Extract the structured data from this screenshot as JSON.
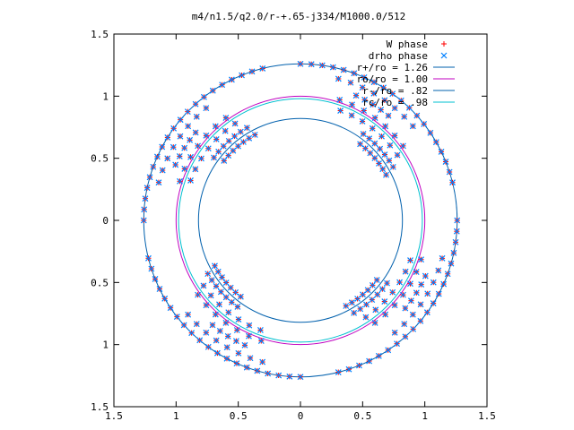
{
  "chart_data": {
    "type": "scatter",
    "title": "m4/n1.5/q2.0/r-+.65-j334/M1000.0/512",
    "xlabel": "",
    "ylabel": "",
    "xlim": [
      -1.5,
      1.5
    ],
    "ylim": [
      -1.5,
      1.5
    ],
    "x_ticks": [
      -1.5,
      -1,
      -0.5,
      0,
      0.5,
      1,
      1.5
    ],
    "x_tick_labels": [
      "1.5",
      "1",
      "0.5",
      "0",
      "0.5",
      "1",
      "1.5"
    ],
    "y_ticks": [
      1.5,
      1,
      0.5,
      0,
      -0.5,
      -1,
      -1.5
    ],
    "y_tick_labels": [
      "1.5",
      "1",
      "0.5",
      "0",
      "0.5",
      "1",
      "1.5"
    ],
    "grid": false,
    "legend_position": "top-right",
    "series": [
      {
        "name": "W phase",
        "kind": "points",
        "marker": "plus",
        "color": "#ff0000"
      },
      {
        "name": "drho phase",
        "kind": "points",
        "marker": "cross",
        "color": "#0080ff"
      },
      {
        "name": "r+/ro = 1.26",
        "kind": "circle",
        "radius": 1.26,
        "color": "#0060ad"
      },
      {
        "name": "ro/ro = 1.00",
        "kind": "circle",
        "radius": 1.0,
        "color": "#c000c0"
      },
      {
        "name": "r-/ro = .82",
        "kind": "circle",
        "radius": 0.82,
        "color": "#0060ad"
      },
      {
        "name": "rc/ro = .98",
        "kind": "circle",
        "radius": 0.98,
        "color": "#00c0d0"
      }
    ],
    "phase_points": [
      {
        "r": 1.26,
        "angles": [
          14,
          18,
          22,
          26,
          30,
          34,
          38,
          42,
          46,
          50,
          54,
          58,
          62,
          66,
          70,
          74,
          78,
          82,
          86,
          90
        ]
      },
      {
        "r": 1.18,
        "angles": [
          40,
          45,
          50,
          55,
          60,
          65,
          70,
          75
        ]
      },
      {
        "r": 1.1,
        "angles": [
          50,
          54,
          58,
          62,
          66
        ]
      },
      {
        "r": 1.02,
        "angles": [
          36,
          42,
          48,
          54,
          60,
          66,
          72
        ]
      },
      {
        "r": 0.94,
        "angles": [
          34,
          40,
          46,
          52,
          58,
          64,
          70
        ]
      },
      {
        "r": 0.86,
        "angles": [
          30,
          34,
          38,
          42,
          46,
          50,
          54
        ]
      },
      {
        "r": 0.78,
        "angles": [
          28,
          32,
          36,
          40,
          44,
          48,
          52
        ]
      }
    ],
    "symmetry_rotations_deg": [
      0,
      90,
      180,
      270
    ]
  }
}
